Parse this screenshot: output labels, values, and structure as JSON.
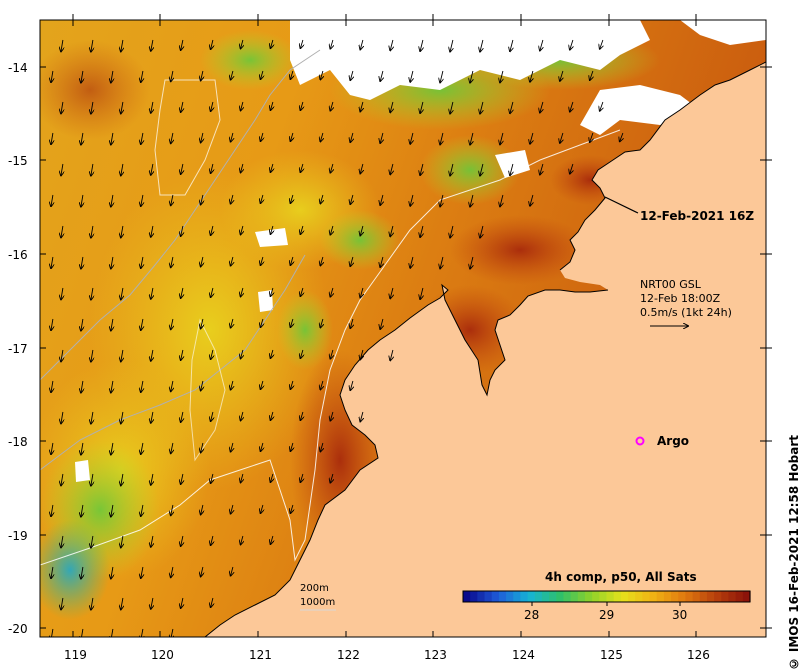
{
  "map": {
    "date_label": "12-Feb-2021 16Z",
    "current_legend": {
      "line1": "NRT00 GSL",
      "line2": "12-Feb 18:00Z",
      "line3": "0.5m/s (1kt 24h)"
    },
    "argo_label": "Argo",
    "bathymetry": {
      "line1": "200m",
      "line2": "1000m"
    },
    "colorbar": {
      "title": "4h comp, p50, All Sats",
      "tick_labels": [
        "28",
        "29",
        "30"
      ],
      "colors": [
        "#0a0a8c",
        "#1f5ad8",
        "#16b3d6",
        "#2fc06a",
        "#8ed12a",
        "#e6e21c",
        "#f0b214",
        "#e07a10",
        "#b8400c",
        "#8c140a"
      ]
    },
    "credit": "© IMOS 16-Feb-2021 12:58 Hobart",
    "lat_labels": [
      "-14",
      "-15",
      "-16",
      "-17",
      "-18",
      "-19",
      "-20"
    ],
    "lon_labels": [
      "119",
      "120",
      "121",
      "122",
      "123",
      "124",
      "125",
      "126"
    ],
    "colors": {
      "land": "#fcc898",
      "cloud": "#ffffff",
      "argo": "#ff00ff"
    }
  }
}
